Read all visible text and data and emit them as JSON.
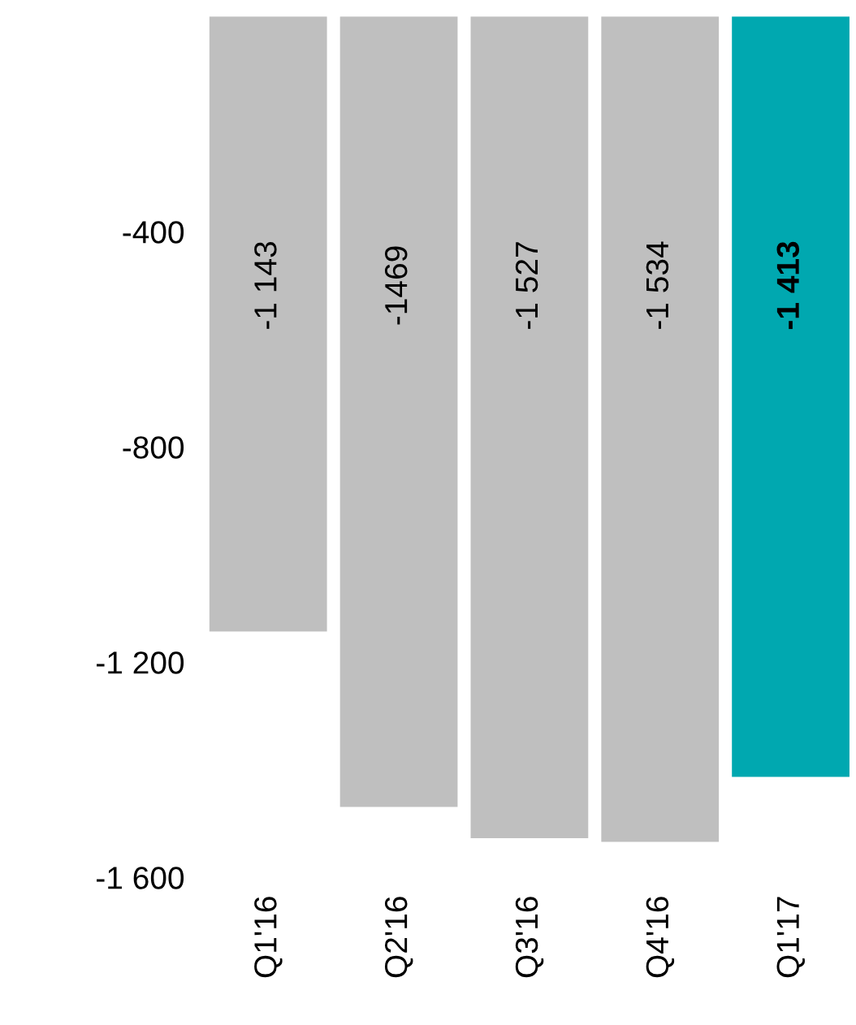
{
  "chart_data": {
    "type": "bar",
    "categories": [
      "Q1'16",
      "Q2'16",
      "Q3'16",
      "Q4'16",
      "Q1'17"
    ],
    "values": [
      -1143,
      -1469,
      -1527,
      -1534,
      -1413
    ],
    "colors": [
      "#bfbfbf",
      "#bfbfbf",
      "#bfbfbf",
      "#bfbfbf",
      "#00a8b0"
    ],
    "value_labels": [
      "-1 143",
      "-1469",
      "-1 527",
      "-1 534",
      "-1 413"
    ],
    "ylim": [
      -1600,
      0
    ],
    "yticks": [
      -400,
      -800,
      {
        "value": -1200,
        "label": "-1 200"
      },
      {
        "value": -1600,
        "label": "-1 600"
      }
    ],
    "grid": false
  }
}
